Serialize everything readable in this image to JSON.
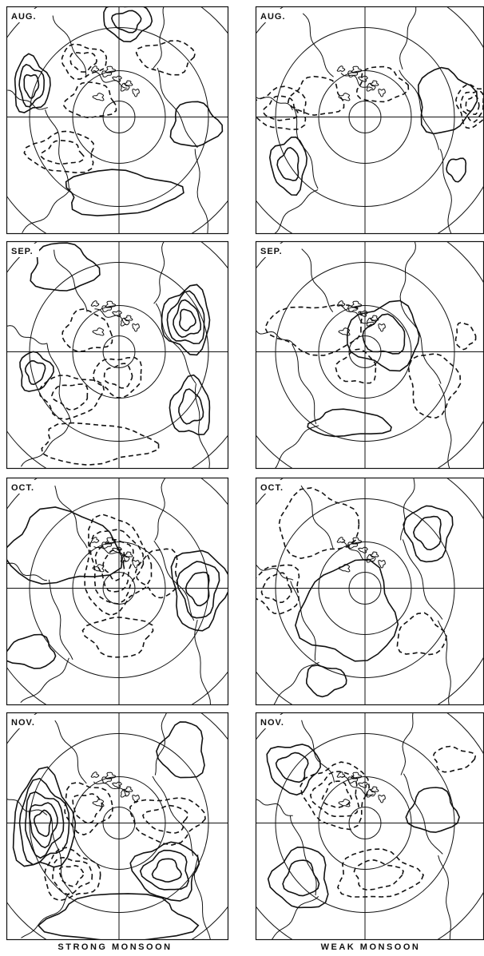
{
  "colors": {
    "ink": "#111111",
    "background": "#ffffff"
  },
  "columns": [
    {
      "caption": "STRONG MONSOON"
    },
    {
      "caption": "WEAK MONSOON"
    }
  ],
  "rows": [
    {
      "month": "AUG."
    },
    {
      "month": "SEP."
    },
    {
      "month": "OCT."
    },
    {
      "month": "NOV."
    }
  ]
}
